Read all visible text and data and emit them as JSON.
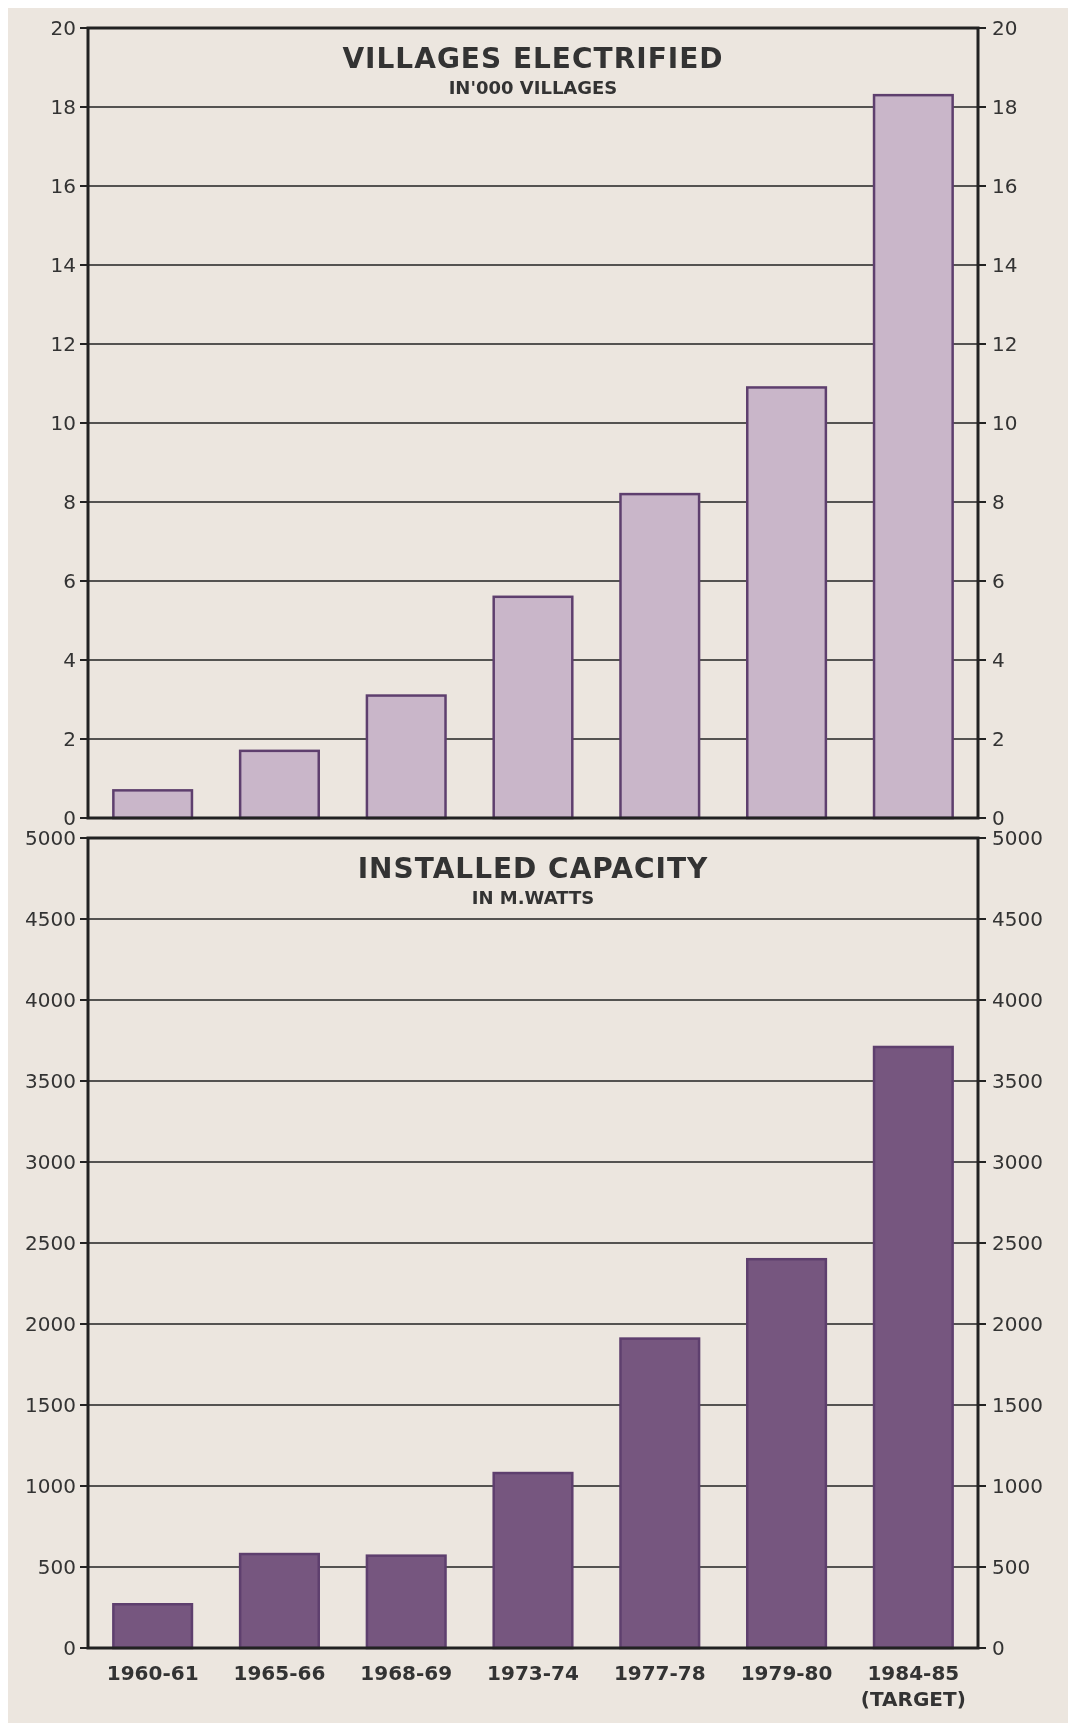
{
  "chart_data": [
    {
      "type": "bar",
      "title": "VILLAGES ELECTRIFIED",
      "subtitle": "IN'000 VILLAGES",
      "categories": [
        null,
        null,
        null,
        null,
        null,
        null,
        null
      ],
      "values": [
        0.7,
        1.7,
        3.1,
        5.6,
        8.2,
        10.9,
        18.3
      ],
      "color": "#c9b6c9",
      "ylim": [
        0,
        20
      ],
      "yticks": [
        0,
        2,
        4,
        6,
        8,
        10,
        12,
        14,
        16,
        18,
        20
      ],
      "y2lim": [
        0,
        20
      ],
      "y2ticks": [
        0,
        2,
        4,
        6,
        8,
        10,
        12,
        14,
        16,
        18,
        20
      ],
      "grid": "y",
      "tick_labels": "y"
    },
    {
      "type": "bar",
      "title": "INSTALLED CAPACITY",
      "subtitle": "IN M.WATTS",
      "categories": [
        "1960-61",
        "1965-66",
        "1968-69",
        "1973-74",
        "1977-78",
        "1979-80",
        "1984-85 (TARGET)"
      ],
      "values": [
        270,
        580,
        570,
        1080,
        1910,
        2400,
        3710
      ],
      "color": "#76567f",
      "ylim": [
        0,
        5000
      ],
      "yticks": [
        0,
        500,
        1000,
        1500,
        2000,
        2500,
        3000,
        3500,
        4000,
        4500,
        5000
      ],
      "y2lim": [
        0,
        5000
      ],
      "y2ticks": [
        0,
        500,
        1000,
        1500,
        2000,
        2500,
        3000,
        3500,
        4000,
        4500,
        5000
      ],
      "grid": "y"
    }
  ]
}
